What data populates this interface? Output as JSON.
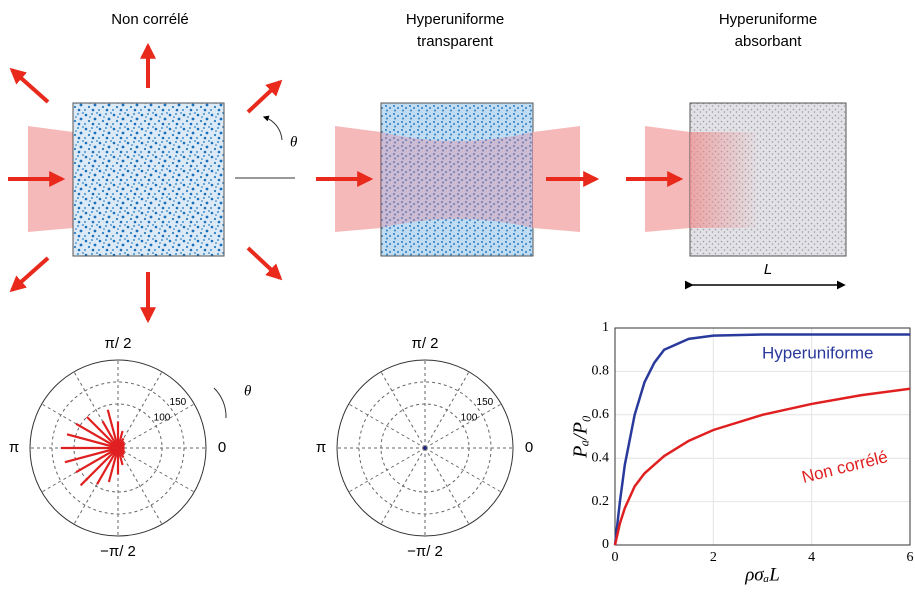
{
  "panels": {
    "titles": [
      [
        "Non corrélé"
      ],
      [
        "Hyperuniforme",
        "transparent"
      ],
      [
        "Hyperuniforme",
        "absorbant"
      ]
    ],
    "theta_symbol": "θ",
    "length_symbol": "L"
  },
  "chart_data": [
    {
      "type": "polar",
      "color": "#e02020",
      "annotation": "θ",
      "theta": [
        0,
        0.2618,
        0.5236,
        0.7854,
        1.0472,
        1.309,
        1.5708,
        1.8326,
        2.0944,
        2.3562,
        2.618,
        2.8798,
        3.1416,
        3.4034,
        3.6652,
        3.927,
        4.1888,
        4.4506,
        4.7124,
        4.9742,
        5.236,
        5.4978,
        5.7596,
        6.0214
      ],
      "r": [
        15,
        15,
        18,
        20,
        25,
        40,
        60,
        90,
        70,
        100,
        110,
        120,
        130,
        125,
        110,
        120,
        95,
        80,
        60,
        40,
        25,
        20,
        18,
        15
      ],
      "rlim": [
        0,
        200
      ],
      "rticks": [
        100,
        150
      ],
      "thetaticks": [
        {
          "value": 1.5708,
          "label": "π/ 2"
        },
        {
          "value": 3.1416,
          "label": "π"
        },
        0,
        {
          "value": -1.5708,
          "label": "−π/ 2"
        }
      ]
    },
    {
      "type": "polar",
      "color": "#1a237e",
      "theta": [
        0,
        1.5708,
        3.1416,
        4.7124
      ],
      "r": [
        4,
        4,
        4,
        4
      ],
      "rlim": [
        0,
        200
      ],
      "rticks": [
        100,
        150
      ],
      "thetaticks": [
        {
          "value": 1.5708,
          "label": "π/ 2"
        },
        {
          "value": 3.1416,
          "label": "π"
        },
        0,
        {
          "value": -1.5708,
          "label": "−π/ 2"
        }
      ]
    },
    {
      "type": "line",
      "xlabel": "ρσₐL",
      "ylabel": "Pₐ/P₀",
      "x": [
        0,
        0.1,
        0.2,
        0.4,
        0.6,
        0.8,
        1,
        1.5,
        2,
        3,
        4,
        5,
        6
      ],
      "series": [
        {
          "name": "Hyperuniforme",
          "color": "#2a3a9c",
          "values": [
            0,
            0.2,
            0.37,
            0.6,
            0.75,
            0.84,
            0.9,
            0.95,
            0.965,
            0.97,
            0.97,
            0.97,
            0.97
          ]
        },
        {
          "name": "Non corrélé",
          "color": "#e02020",
          "values": [
            0,
            0.1,
            0.17,
            0.27,
            0.33,
            0.37,
            0.41,
            0.48,
            0.53,
            0.6,
            0.65,
            0.69,
            0.72
          ]
        }
      ],
      "xlim": [
        0,
        6
      ],
      "xticks": [
        0,
        2,
        4,
        6
      ],
      "ylim": [
        0,
        1
      ],
      "yticks": [
        0,
        0.2,
        0.4,
        0.6,
        0.8,
        1
      ],
      "grid": true
    }
  ]
}
